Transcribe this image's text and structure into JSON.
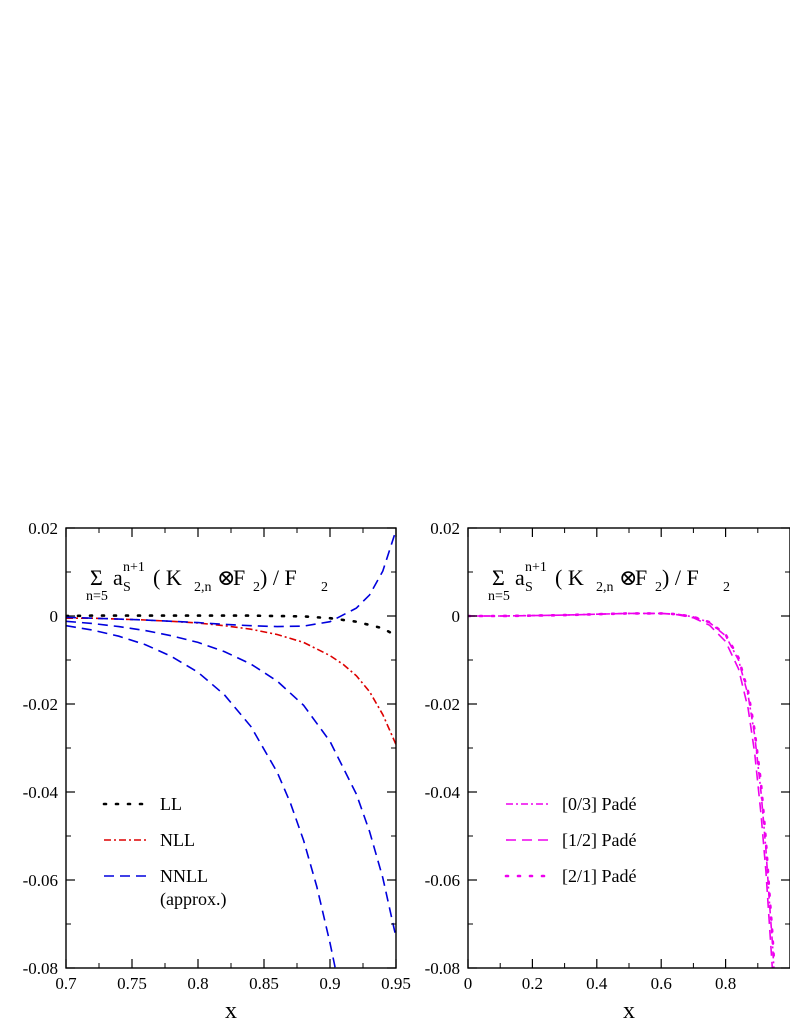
{
  "chart_data": [
    {
      "type": "line",
      "panel": "left",
      "xlabel": "x",
      "ylabel": "",
      "xlim": [
        0.7,
        0.95
      ],
      "ylim": [
        -0.08,
        0.02
      ],
      "xticks": [
        "0.7",
        "0.75",
        "0.8",
        "0.85",
        "0.9",
        "0.95"
      ],
      "yticks": [
        "0.02",
        "0",
        "-0.02",
        "-0.04",
        "-0.06",
        "-0.08"
      ],
      "grid": false,
      "legend_position": "bottom-left",
      "annotation": {
        "sigma": "Σ",
        "sub": "n=5",
        "a": "a",
        "a_sub": "S",
        "a_sup": "n+1",
        "open": " ( K",
        "k_sub": "2,n",
        "otimes": "⊗",
        "f": " F",
        "f_sub": "2",
        "close": " ) / F",
        "close_sub": "2"
      },
      "series": [
        {
          "name": "LL",
          "color": "#000000",
          "dash": "dotted",
          "x": [
            0.7,
            0.72,
            0.74,
            0.76,
            0.78,
            0.8,
            0.82,
            0.84,
            0.86,
            0.88,
            0.9,
            0.92,
            0.94,
            0.95
          ],
          "y": [
            0.0,
            0.0001,
            0.0001,
            0.0001,
            0.0001,
            0.0001,
            0.0001,
            0.0001,
            0.0,
            -0.0001,
            -0.0005,
            -0.0013,
            -0.0028,
            -0.0045
          ]
        },
        {
          "name": "NLL",
          "color": "#dd0000",
          "dash": "dash-dot",
          "x": [
            0.7,
            0.72,
            0.74,
            0.76,
            0.78,
            0.8,
            0.82,
            0.84,
            0.86,
            0.88,
            0.9,
            0.91,
            0.92,
            0.93,
            0.94,
            0.95
          ],
          "y": [
            -0.0005,
            -0.0005,
            -0.0007,
            -0.0009,
            -0.0012,
            -0.0016,
            -0.0022,
            -0.003,
            -0.0042,
            -0.006,
            -0.009,
            -0.011,
            -0.0136,
            -0.0172,
            -0.0224,
            -0.0292
          ]
        },
        {
          "name": "NNLL",
          "name2": "(approx.)",
          "color": "#0000dd",
          "dash": "dashed",
          "x": [
            0.7,
            0.72,
            0.74,
            0.76,
            0.78,
            0.8,
            0.82,
            0.84,
            0.86,
            0.88,
            0.9,
            0.92,
            0.93,
            0.94,
            0.95
          ],
          "y": [
            -0.0003,
            -0.0005,
            -0.0007,
            -0.0009,
            -0.0012,
            -0.0015,
            -0.0019,
            -0.0022,
            -0.0024,
            -0.0023,
            -0.0013,
            0.0018,
            0.0048,
            0.0102,
            0.0195
          ]
        },
        {
          "name": "",
          "color": "#0000dd",
          "dash": "dashed",
          "x": [
            0.7,
            0.72,
            0.74,
            0.76,
            0.78,
            0.8,
            0.82,
            0.84,
            0.86,
            0.88,
            0.9,
            0.92,
            0.93,
            0.94,
            0.95
          ],
          "y": [
            -0.0012,
            -0.0017,
            -0.0024,
            -0.0033,
            -0.0045,
            -0.006,
            -0.0081,
            -0.0109,
            -0.0148,
            -0.0203,
            -0.0285,
            -0.0405,
            -0.049,
            -0.0595,
            -0.073
          ]
        },
        {
          "name": "",
          "color": "#0000dd",
          "dash": "dashed",
          "x": [
            0.7,
            0.72,
            0.74,
            0.76,
            0.78,
            0.8,
            0.82,
            0.84,
            0.86,
            0.87,
            0.88,
            0.89,
            0.9,
            0.905,
            0.91
          ],
          "y": [
            -0.0022,
            -0.0032,
            -0.0046,
            -0.0065,
            -0.0092,
            -0.0128,
            -0.0179,
            -0.0251,
            -0.0355,
            -0.0425,
            -0.051,
            -0.0615,
            -0.0743,
            -0.0815,
            -0.0902
          ]
        }
      ]
    },
    {
      "type": "line",
      "panel": "right",
      "xlabel": "x",
      "ylabel": "",
      "xlim": [
        0.0,
        1.0
      ],
      "ylim": [
        -0.08,
        0.02
      ],
      "xticks": [
        "0",
        "0.2",
        "0.4",
        "0.6",
        "0.8"
      ],
      "yticks": [
        "0.02",
        "0",
        "-0.02",
        "-0.04",
        "-0.06",
        "-0.08"
      ],
      "grid": false,
      "legend_position": "bottom-left",
      "annotation": {
        "sigma": "Σ",
        "sub": "n=5",
        "a": "a",
        "a_sub": "S",
        "a_sup": "n+1",
        "open": " ( K",
        "k_sub": "2,n",
        "otimes": "⊗",
        "f": " F",
        "f_sub": "2",
        "close": " ) / F",
        "close_sub": "2"
      },
      "series": [
        {
          "name": "[0/3]  Padé",
          "color": "#ee00ee",
          "dash": "dash-dot",
          "x": [
            0.0,
            0.1,
            0.2,
            0.3,
            0.4,
            0.5,
            0.6,
            0.65,
            0.7,
            0.75,
            0.8,
            0.84,
            0.87,
            0.89,
            0.91,
            0.925,
            0.935,
            0.945,
            0.95
          ],
          "y": [
            0.0,
            0.0,
            0.0001,
            0.0002,
            0.0004,
            0.0006,
            0.0006,
            0.0004,
            -0.0002,
            -0.0015,
            -0.0045,
            -0.01,
            -0.018,
            -0.027,
            -0.04,
            -0.053,
            -0.064,
            -0.074,
            -0.08
          ]
        },
        {
          "name": "[1/2]  Padé",
          "color": "#ee00ee",
          "dash": "dashed",
          "x": [
            0.0,
            0.1,
            0.2,
            0.3,
            0.4,
            0.5,
            0.6,
            0.65,
            0.7,
            0.75,
            0.8,
            0.84,
            0.87,
            0.89,
            0.91,
            0.925,
            0.935,
            0.945
          ],
          "y": [
            0.0,
            0.0,
            0.0001,
            0.0002,
            0.0004,
            0.0006,
            0.0006,
            0.0003,
            -0.0004,
            -0.0021,
            -0.0058,
            -0.012,
            -0.021,
            -0.031,
            -0.045,
            -0.058,
            -0.069,
            -0.08
          ]
        },
        {
          "name": "[2/1]  Padé",
          "color": "#ee00ee",
          "dash": "dotted",
          "x": [
            0.0,
            0.1,
            0.2,
            0.3,
            0.4,
            0.5,
            0.6,
            0.65,
            0.7,
            0.75,
            0.8,
            0.84,
            0.87,
            0.89,
            0.91,
            0.925,
            0.935,
            0.945,
            0.95
          ],
          "y": [
            0.0,
            0.0,
            0.0001,
            0.0002,
            0.0004,
            0.0006,
            0.0006,
            0.0004,
            -0.0002,
            -0.0014,
            -0.0042,
            -0.0095,
            -0.0172,
            -0.026,
            -0.038,
            -0.051,
            -0.062,
            -0.072,
            -0.078
          ]
        }
      ]
    }
  ]
}
